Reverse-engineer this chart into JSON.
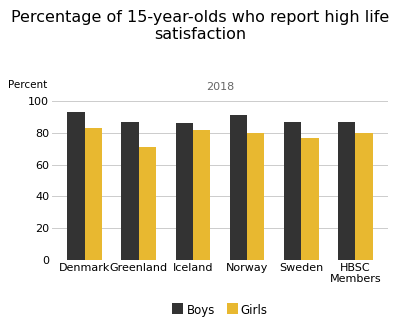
{
  "title": "Percentage of 15-year-olds who report high life\nsatisfaction",
  "subtitle": "2018",
  "ylabel": "Percent",
  "categories": [
    "Denmark",
    "Greenland",
    "Iceland",
    "Norway",
    "Sweden",
    "HBSC\nMembers"
  ],
  "boys": [
    93,
    87,
    86,
    91,
    87,
    87
  ],
  "girls": [
    83,
    71,
    82,
    80,
    77,
    80
  ],
  "boys_color": "#333333",
  "girls_color": "#e8b830",
  "ylim": [
    0,
    105
  ],
  "yticks": [
    0,
    20,
    40,
    60,
    80,
    100
  ],
  "background_color": "#ffffff",
  "grid_color": "#cccccc",
  "legend_labels": [
    "Boys",
    "Girls"
  ],
  "bar_width": 0.32,
  "title_fontsize": 11.5,
  "subtitle_fontsize": 8,
  "axis_label_fontsize": 7.5,
  "tick_fontsize": 8,
  "legend_fontsize": 8.5
}
